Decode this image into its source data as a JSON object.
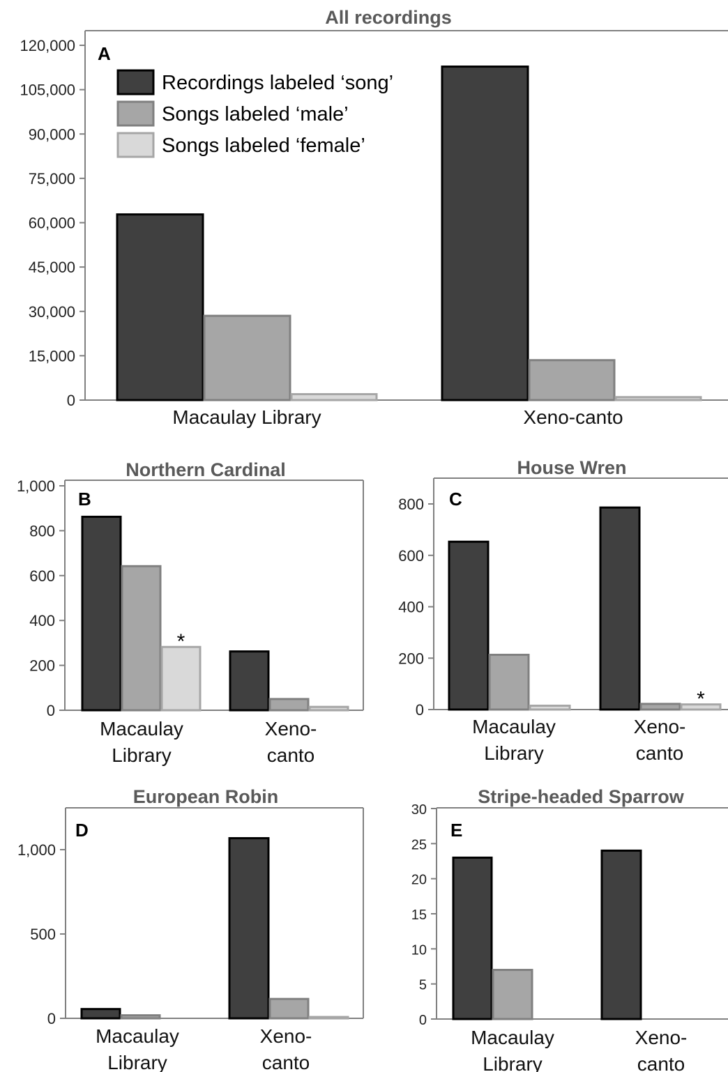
{
  "legend": [
    "Recordings labeled ‘song’",
    "Songs labeled ‘male’",
    "Songs labeled ‘female’"
  ],
  "colors": {
    "series": [
      "#404040",
      "#a6a6a6",
      "#d9d9d9"
    ],
    "outline": [
      "#000000",
      "#808080",
      "#a6a6a6"
    ]
  },
  "chart_data": [
    {
      "type": "bar",
      "panel": "A",
      "title": "All recordings",
      "categories": [
        "Macaulay Library",
        "Xeno-canto"
      ],
      "series": [
        {
          "name": "Recordings labeled ‘song’",
          "values": [
            62800,
            112800
          ]
        },
        {
          "name": "Songs labeled ‘male’",
          "values": [
            28500,
            13500
          ]
        },
        {
          "name": "Songs labeled ‘female’",
          "values": [
            2000,
            1000
          ]
        }
      ],
      "ylim": [
        0,
        120000
      ],
      "yticks": [
        "0",
        "15,000",
        "30,000",
        "45,000",
        "60,000",
        "75,000",
        "90,000",
        "105,000",
        "120,000"
      ],
      "legend_position": "top-left"
    },
    {
      "type": "bar",
      "panel": "B",
      "title": "Northern Cardinal",
      "categories": [
        "Macaulay Library",
        "Xeno-canto"
      ],
      "series": [
        {
          "values": [
            862,
            262
          ]
        },
        {
          "values": [
            642,
            50
          ]
        },
        {
          "values": [
            282,
            15
          ]
        }
      ],
      "ylim": [
        0,
        1000
      ],
      "yticks": [
        "0",
        "200",
        "400",
        "600",
        "800",
        "1,000"
      ],
      "annotations": [
        {
          "text": "*",
          "category": 0,
          "series": 2
        }
      ]
    },
    {
      "type": "bar",
      "panel": "C",
      "title": "House Wren",
      "categories": [
        "Macaulay Library",
        "Xeno-canto"
      ],
      "series": [
        {
          "values": [
            653,
            786
          ]
        },
        {
          "values": [
            213,
            22
          ]
        },
        {
          "values": [
            15,
            20
          ]
        }
      ],
      "ylim": [
        0,
        800
      ],
      "yticks": [
        "0",
        "200",
        "400",
        "600",
        "800"
      ],
      "annotations": [
        {
          "text": "*",
          "category": 1,
          "series": 2
        }
      ]
    },
    {
      "type": "bar",
      "panel": "D",
      "title": "European Robin",
      "categories": [
        "Macaulay Library",
        "Xeno-canto"
      ],
      "series": [
        {
          "values": [
            55,
            1068
          ]
        },
        {
          "values": [
            18,
            115
          ]
        },
        {
          "values": [
            0,
            8
          ]
        }
      ],
      "ylim": [
        0,
        1000
      ],
      "yticks": [
        "0",
        "500",
        "1,000"
      ]
    },
    {
      "type": "bar",
      "panel": "E",
      "title": "Stripe-headed Sparrow",
      "categories": [
        "Macaulay Library",
        "Xeno-canto"
      ],
      "series": [
        {
          "values": [
            23,
            24
          ]
        },
        {
          "values": [
            7,
            0
          ]
        },
        {
          "values": [
            0,
            0
          ]
        }
      ],
      "ylim": [
        0,
        30
      ],
      "yticks": [
        "0",
        "5",
        "10",
        "15",
        "20",
        "25",
        "30"
      ]
    }
  ]
}
